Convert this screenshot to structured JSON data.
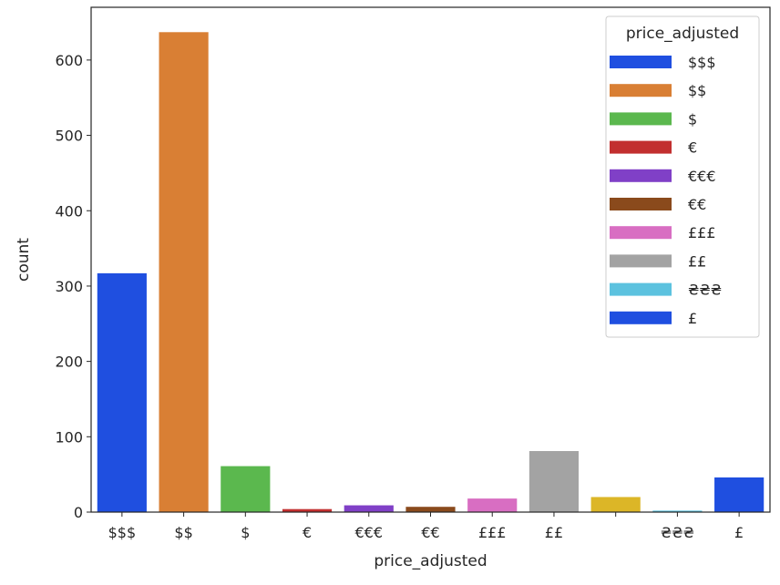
{
  "chart_data": {
    "type": "bar",
    "xlabel": "price_adjusted",
    "ylabel": "count",
    "ylim": [
      0,
      670
    ],
    "y_ticks": [
      0,
      100,
      200,
      300,
      400,
      500,
      600
    ],
    "categories": [
      "$$$",
      "$$",
      "$",
      "€",
      "€€€",
      "€€",
      "£££",
      "££",
      "",
      "₴₴₴",
      "£"
    ],
    "values": [
      317,
      637,
      61,
      4,
      9,
      7,
      18,
      81,
      20,
      2,
      46
    ],
    "colors": [
      "#1f4fe0",
      "#d97f34",
      "#5bb84e",
      "#c22f2f",
      "#8040c7",
      "#8a4a1c",
      "#d86ec2",
      "#a3a3a3",
      "#dcb627",
      "#5cc2df",
      "#1f4fe0"
    ],
    "legend": {
      "title": "price_adjusted",
      "position": "top-right",
      "entries": [
        {
          "label": "$$$",
          "color": "#1f4fe0"
        },
        {
          "label": "$$",
          "color": "#d97f34"
        },
        {
          "label": "$",
          "color": "#5bb84e"
        },
        {
          "label": "€",
          "color": "#c22f2f"
        },
        {
          "label": "€€€",
          "color": "#8040c7"
        },
        {
          "label": "€€",
          "color": "#8a4a1c"
        },
        {
          "label": "£££",
          "color": "#d86ec2"
        },
        {
          "label": "££",
          "color": "#a3a3a3"
        },
        {
          "label": "₴₴₴",
          "color": "#5cc2df"
        },
        {
          "label": "£",
          "color": "#1f4fe0"
        }
      ]
    },
    "grid": false
  }
}
